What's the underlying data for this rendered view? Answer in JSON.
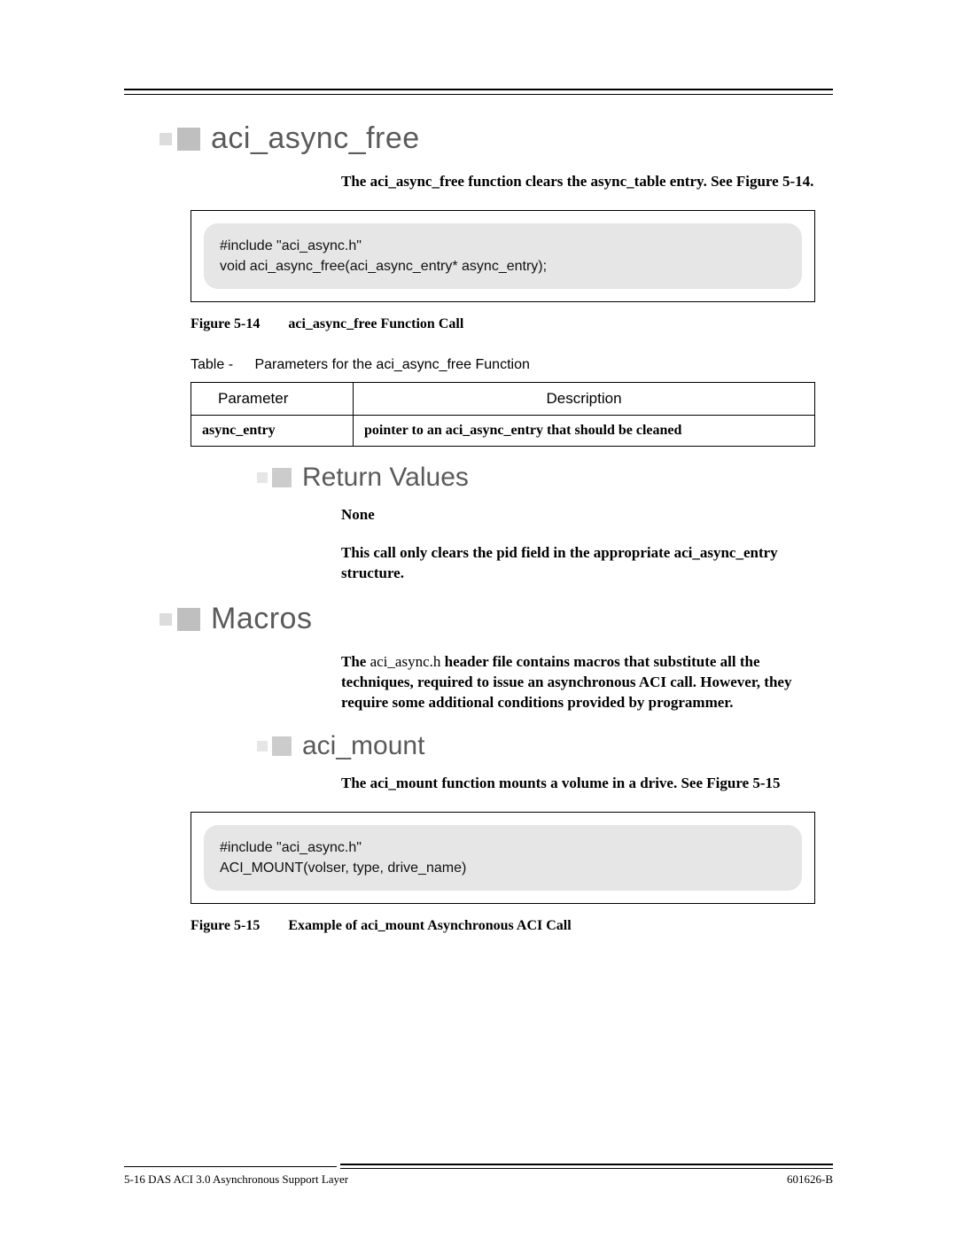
{
  "section1": {
    "heading": "aci_async_free",
    "intro": "The aci_async_free function clears the async_table entry. See Figure 5-14.",
    "code_line1": "#include \"aci_async.h\"",
    "code_line2": "void aci_async_free(aci_async_entry* async_entry);",
    "fig_num": "Figure 5-14",
    "fig_title": "aci_async_free Function Call",
    "table_label": "Table   -",
    "table_title": "Parameters for the aci_async_free Function",
    "table_header_param": "Parameter",
    "table_header_desc": "Description",
    "table_row_param": "async_entry",
    "table_row_desc": "pointer to an aci_async_entry that should be cleaned"
  },
  "returns": {
    "heading": "Return Values",
    "none": "None",
    "desc": "This call only clears the pid field in the appropriate aci_async_entry structure."
  },
  "macros": {
    "heading": "Macros",
    "intro_prefix": "The ",
    "intro_file": "aci_async.h",
    "intro_rest": " header file contains macros that substitute all the techniques, required to issue an asynchronous ACI call. However, they require some additional conditions provided by programmer."
  },
  "acimount": {
    "heading": "aci_mount",
    "intro": "The aci_mount function mounts a volume in a drive. See Figure 5-15",
    "code_line1": "#include \"aci_async.h\"",
    "code_line2": "ACI_MOUNT(volser, type, drive_name)",
    "fig_num": "Figure 5-15",
    "fig_title": "Example of aci_mount Asynchronous ACI Call"
  },
  "footer": {
    "left": "5-16    DAS ACI 3.0 Asynchronous Support Layer",
    "right": "601626-B"
  }
}
